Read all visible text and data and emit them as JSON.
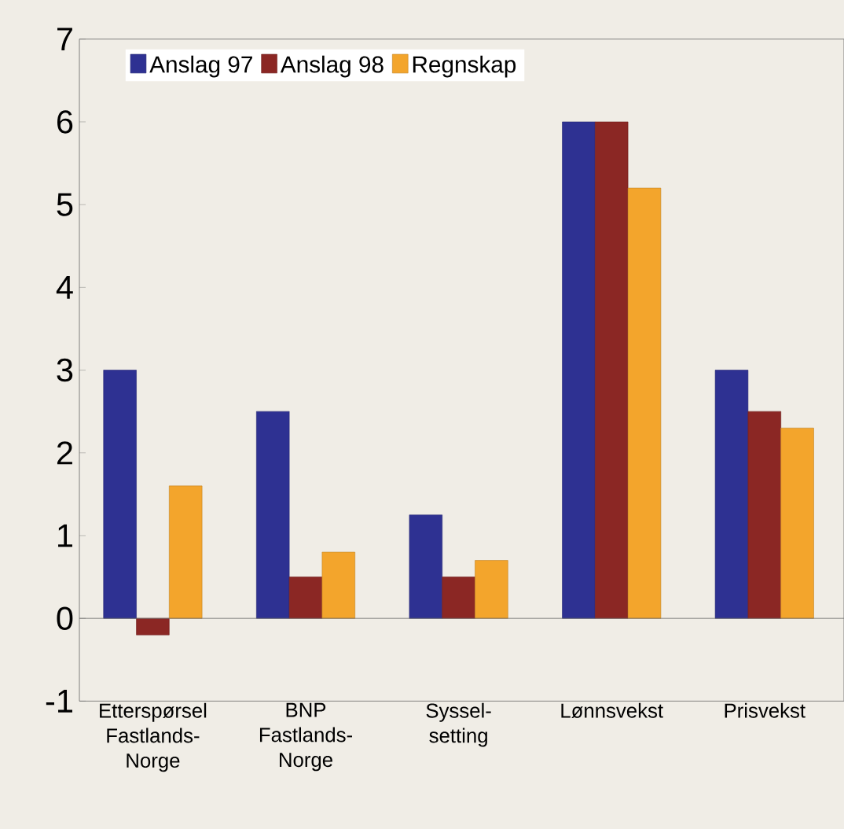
{
  "chart_data": {
    "type": "bar",
    "categories": [
      "Etterspørsel Fastlands-Norge",
      "BNP Fastlands-Norge",
      "Syssel-setting",
      "Lønnsvekst",
      "Prisvekst"
    ],
    "series": [
      {
        "name": "Anslag 97",
        "color": "#2e3192",
        "values": [
          3,
          2.5,
          1.25,
          6,
          3
        ]
      },
      {
        "name": "Anslag 98",
        "color": "#8b2724",
        "values": [
          -0.2,
          0.5,
          0.5,
          6,
          2.5
        ]
      },
      {
        "name": "Regnskap",
        "color": "#f3a52c",
        "values": [
          1.6,
          0.8,
          0.7,
          5.2,
          2.3
        ]
      }
    ],
    "ylim": [
      -1,
      7
    ],
    "yticks": [
      -1,
      0,
      1,
      2,
      3,
      4,
      5,
      6,
      7
    ],
    "legend": "top left"
  }
}
